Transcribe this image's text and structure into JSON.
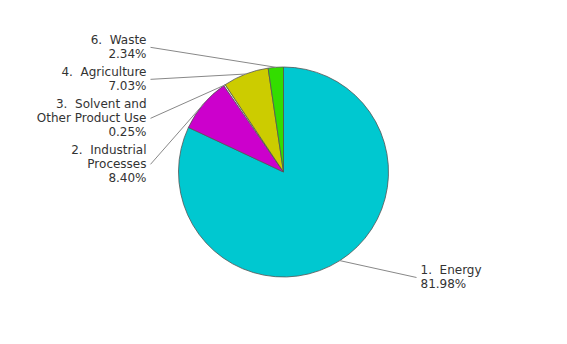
{
  "chart_data": {
    "type": "pie",
    "categories": [
      "1.  Energy",
      "2.  Industrial\nProcesses",
      "3.  Solvent and\nOther Product Use",
      "4.  Agriculture",
      "6.  Waste"
    ],
    "values": [
      81.98,
      8.4,
      0.25,
      7.03,
      2.34
    ],
    "value_labels": [
      "81.98%",
      "8.40%",
      "0.25%",
      "7.03%",
      "2.34%"
    ],
    "colors": [
      "#00C8D0",
      "#CC00CC",
      "#FFFFFF",
      "#CCCC00",
      "#33DD00"
    ],
    "data_labels": true
  }
}
